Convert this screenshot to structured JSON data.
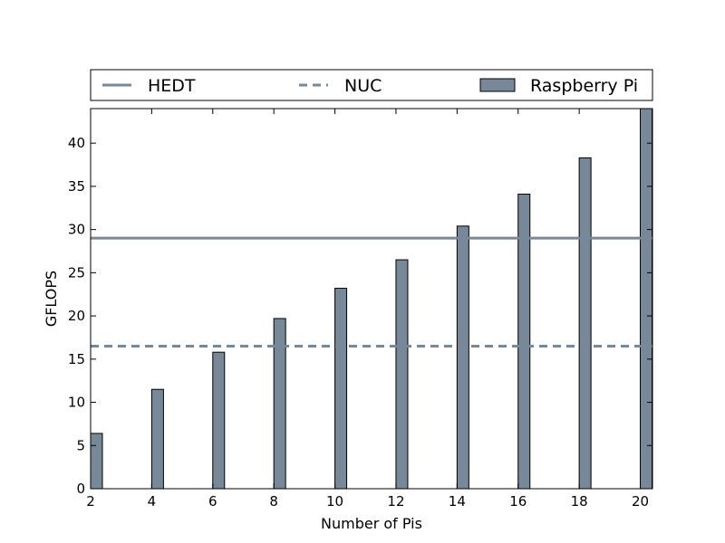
{
  "chart_data": {
    "type": "bar",
    "title": "",
    "xlabel": "Number of Pis",
    "ylabel": "GFLOPS",
    "xlim": [
      2,
      20.4
    ],
    "ylim": [
      0,
      44
    ],
    "x_ticks": [
      2,
      4,
      6,
      8,
      10,
      12,
      14,
      16,
      18,
      20
    ],
    "y_ticks": [
      0,
      5,
      10,
      15,
      20,
      25,
      30,
      35,
      40
    ],
    "legend_position": "top",
    "series": [
      {
        "name": "Raspberry Pi",
        "kind": "bar",
        "color": "#778899",
        "x": [
          2,
          4,
          6,
          8,
          10,
          12,
          14,
          16,
          18,
          20
        ],
        "values": [
          6.4,
          11.5,
          15.8,
          19.7,
          23.2,
          26.5,
          30.4,
          34.1,
          38.3,
          44.0
        ]
      },
      {
        "name": "HEDT",
        "kind": "hline",
        "style": "solid",
        "color": "#778899",
        "value": 29.0
      },
      {
        "name": "NUC",
        "kind": "hline",
        "style": "dashed",
        "color": "#778899",
        "value": 16.5
      }
    ]
  }
}
